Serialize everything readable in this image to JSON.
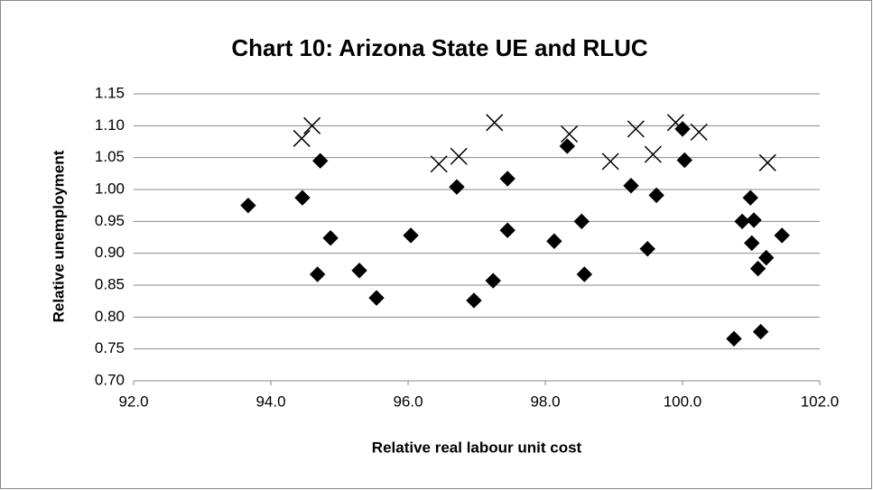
{
  "chart_data": {
    "type": "scatter",
    "title": "Chart 10: Arizona State UE and RLUC",
    "x_label": "Relative real labour unit cost",
    "y_label": "Relative unemployment",
    "xlim": [
      92,
      102
    ],
    "ylim": [
      0.7,
      1.15
    ],
    "xticks": [
      {
        "value": 92,
        "label": "92.0"
      },
      {
        "value": 94,
        "label": "94.0"
      },
      {
        "value": 96,
        "label": "96.0"
      },
      {
        "value": 98,
        "label": "98.0"
      },
      {
        "value": 100,
        "label": "100.0"
      },
      {
        "value": 102,
        "label": "102.0"
      }
    ],
    "yticks": [
      {
        "value": 0.7,
        "label": "0.70"
      },
      {
        "value": 0.75,
        "label": "0.75"
      },
      {
        "value": 0.8,
        "label": "0.80"
      },
      {
        "value": 0.85,
        "label": "0.85"
      },
      {
        "value": 0.9,
        "label": "0.90"
      },
      {
        "value": 0.95,
        "label": "0.95"
      },
      {
        "value": 1.0,
        "label": "1.00"
      },
      {
        "value": 1.05,
        "label": "1.05"
      },
      {
        "value": 1.1,
        "label": "1.10"
      },
      {
        "value": 1.15,
        "label": "1.15"
      }
    ],
    "grid": true,
    "series": [
      {
        "marker": "diamond",
        "color": "#000000",
        "x": [
          93.67,
          94.46,
          94.72,
          94.68,
          94.87,
          95.29,
          95.54,
          96.04,
          96.71,
          96.96,
          97.24,
          97.45,
          97.45,
          98.13,
          98.32,
          98.53,
          98.57,
          99.25,
          99.49,
          99.62,
          100.0,
          100.03,
          100.75,
          100.87,
          100.99,
          101.01,
          101.04,
          101.1,
          101.14,
          101.22,
          101.45
        ],
        "values": [
          0.975,
          0.987,
          1.045,
          0.867,
          0.924,
          0.873,
          0.83,
          0.928,
          1.004,
          0.826,
          0.857,
          1.017,
          0.936,
          0.919,
          1.068,
          0.95,
          0.867,
          1.006,
          0.907,
          0.991,
          1.095,
          1.046,
          0.766,
          0.95,
          0.987,
          0.916,
          0.952,
          0.876,
          0.777,
          0.893,
          0.928
        ]
      },
      {
        "marker": "x",
        "color": "#000000",
        "x": [
          94.45,
          94.6,
          96.45,
          96.74,
          97.26,
          98.35,
          98.95,
          99.32,
          99.57,
          99.9,
          100.24,
          101.24
        ],
        "values": [
          1.08,
          1.1,
          1.04,
          1.052,
          1.105,
          1.087,
          1.044,
          1.095,
          1.055,
          1.105,
          1.09,
          1.042
        ]
      }
    ]
  }
}
